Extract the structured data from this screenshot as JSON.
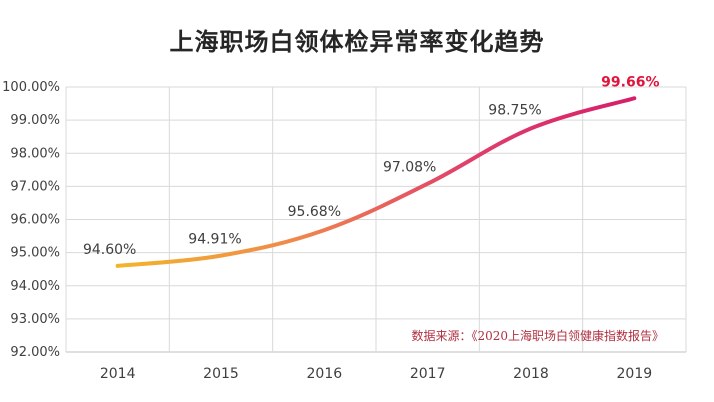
{
  "chart_data": {
    "type": "line",
    "title": "上海职场白领体检异常率变化趋势",
    "categories": [
      "2014",
      "2015",
      "2016",
      "2017",
      "2018",
      "2019"
    ],
    "series": [
      {
        "values": [
          94.6,
          94.91,
          95.68,
          97.08,
          98.75,
          99.66
        ]
      }
    ],
    "data_labels": [
      "94.60%",
      "94.91%",
      "95.68%",
      "97.08%",
      "98.75%",
      "99.66%"
    ],
    "y_ticks": [
      "92.00%",
      "93.00%",
      "94.00%",
      "95.00%",
      "96.00%",
      "97.00%",
      "98.00%",
      "99.00%",
      "100.00%"
    ],
    "ylim": [
      92,
      100
    ],
    "grid": true,
    "line_gradient": [
      "#f2b52a",
      "#f08a4b",
      "#e0416b",
      "#d61e6a"
    ],
    "highlight_color": "#e0143c",
    "annotation": "数据来源：《2020上海职场白领健康指数报告》"
  }
}
